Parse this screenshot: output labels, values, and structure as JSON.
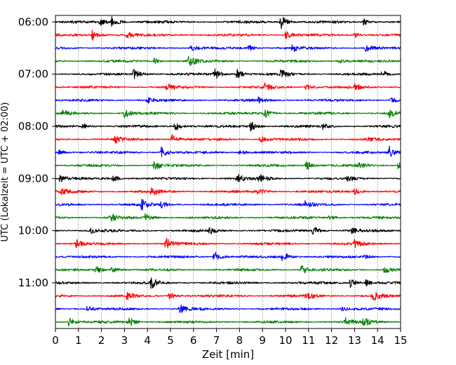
{
  "chart_data": {
    "type": "line",
    "title": "",
    "xlabel": "Zeit  [min]",
    "ylabel": "UTC (Lokalzeit = UTC + 02:00)",
    "xlim": [
      0,
      15
    ],
    "ylim": [
      -0.5,
      23.5
    ],
    "x_ticks": [
      0,
      1,
      2,
      3,
      4,
      5,
      6,
      7,
      8,
      9,
      10,
      11,
      12,
      13,
      14,
      15
    ],
    "x_tick_labels": [
      "0",
      "1",
      "2",
      "3",
      "4",
      "5",
      "6",
      "7",
      "8",
      "9",
      "10",
      "11",
      "12",
      "13",
      "14",
      "15"
    ],
    "y_ticks": [
      0,
      4,
      8,
      12,
      16,
      20
    ],
    "y_tick_labels": [
      "06:00",
      "07:00",
      "08:00",
      "09:00",
      "10:00",
      "11:00"
    ],
    "vertical_grid": true,
    "grid_style": "dotted",
    "y_direction": "down",
    "trace_amplitude_rows": 0.55,
    "series_colors": [
      "#000000",
      "#ff0000",
      "#0000ff",
      "#008000"
    ],
    "series": [
      {
        "row": 0,
        "start": "06:00",
        "color": "#000000",
        "bursts": [
          {
            "t": 1.9,
            "a": 0.6
          },
          {
            "t": 2.45,
            "a": 0.9
          },
          {
            "t": 9.8,
            "a": 1.0
          },
          {
            "t": 13.4,
            "a": 0.45
          }
        ]
      },
      {
        "row": 1,
        "start": "06:15",
        "color": "#ff0000",
        "bursts": [
          {
            "t": 1.6,
            "a": 0.8
          },
          {
            "t": 3.1,
            "a": 0.45
          },
          {
            "t": 10.0,
            "a": 0.55
          },
          {
            "t": 13.0,
            "a": 0.45
          }
        ]
      },
      {
        "row": 2,
        "start": "06:30",
        "color": "#0000ff",
        "bursts": [
          {
            "t": 5.9,
            "a": 0.45
          },
          {
            "t": 8.4,
            "a": 0.45
          },
          {
            "t": 10.3,
            "a": 0.5
          },
          {
            "t": 13.5,
            "a": 0.45
          }
        ]
      },
      {
        "row": 3,
        "start": "06:45",
        "color": "#008000",
        "bursts": [
          {
            "t": 4.3,
            "a": 0.4
          },
          {
            "t": 5.8,
            "a": 0.9
          },
          {
            "t": 12.3,
            "a": 0.4
          }
        ]
      },
      {
        "row": 4,
        "start": "07:00",
        "color": "#000000",
        "bursts": [
          {
            "t": 3.4,
            "a": 0.8
          },
          {
            "t": 6.9,
            "a": 0.9
          },
          {
            "t": 7.9,
            "a": 0.7
          },
          {
            "t": 9.8,
            "a": 0.6
          },
          {
            "t": 14.2,
            "a": 0.5
          }
        ]
      },
      {
        "row": 5,
        "start": "07:15",
        "color": "#ff0000",
        "bursts": [
          {
            "t": 4.85,
            "a": 0.5
          },
          {
            "t": 9.1,
            "a": 0.45
          },
          {
            "t": 10.9,
            "a": 0.5
          },
          {
            "t": 13.0,
            "a": 0.45
          }
        ]
      },
      {
        "row": 6,
        "start": "07:30",
        "color": "#0000ff",
        "bursts": [
          {
            "t": 4.0,
            "a": 0.4
          },
          {
            "t": 8.8,
            "a": 0.45
          },
          {
            "t": 14.6,
            "a": 0.35
          }
        ]
      },
      {
        "row": 7,
        "start": "07:45",
        "color": "#008000",
        "bursts": [
          {
            "t": 0.3,
            "a": 0.4
          },
          {
            "t": 3.0,
            "a": 0.7
          },
          {
            "t": 9.1,
            "a": 0.7
          },
          {
            "t": 14.5,
            "a": 0.75
          }
        ]
      },
      {
        "row": 8,
        "start": "08:00",
        "color": "#000000",
        "bursts": [
          {
            "t": 1.2,
            "a": 0.45
          },
          {
            "t": 5.2,
            "a": 0.75
          },
          {
            "t": 8.45,
            "a": 0.8
          },
          {
            "t": 11.6,
            "a": 0.35
          }
        ]
      },
      {
        "row": 9,
        "start": "08:15",
        "color": "#ff0000",
        "bursts": [
          {
            "t": 2.6,
            "a": 0.45
          },
          {
            "t": 5.05,
            "a": 0.8
          },
          {
            "t": 8.9,
            "a": 0.55
          },
          {
            "t": 13.5,
            "a": 0.35
          }
        ]
      },
      {
        "row": 10,
        "start": "08:30",
        "color": "#0000ff",
        "bursts": [
          {
            "t": 0.15,
            "a": 0.4
          },
          {
            "t": 4.6,
            "a": 0.75
          },
          {
            "t": 8.0,
            "a": 0.45
          },
          {
            "t": 14.5,
            "a": 0.85
          }
        ]
      },
      {
        "row": 11,
        "start": "08:45",
        "color": "#008000",
        "bursts": [
          {
            "t": 4.3,
            "a": 0.8
          },
          {
            "t": 10.9,
            "a": 0.65
          },
          {
            "t": 13.2,
            "a": 0.45
          },
          {
            "t": 14.9,
            "a": 0.55
          }
        ]
      },
      {
        "row": 12,
        "start": "09:00",
        "color": "#000000",
        "bursts": [
          {
            "t": 0.2,
            "a": 0.5
          },
          {
            "t": 2.5,
            "a": 0.45
          },
          {
            "t": 7.9,
            "a": 0.65
          },
          {
            "t": 8.85,
            "a": 0.7
          },
          {
            "t": 12.7,
            "a": 0.35
          }
        ]
      },
      {
        "row": 13,
        "start": "09:15",
        "color": "#ff0000",
        "bursts": [
          {
            "t": 0.25,
            "a": 0.55
          },
          {
            "t": 4.15,
            "a": 0.8
          },
          {
            "t": 8.8,
            "a": 0.45
          },
          {
            "t": 13.0,
            "a": 0.45
          }
        ]
      },
      {
        "row": 14,
        "start": "09:30",
        "color": "#0000ff",
        "bursts": [
          {
            "t": 3.75,
            "a": 0.7
          },
          {
            "t": 4.6,
            "a": 0.4
          },
          {
            "t": 10.85,
            "a": 0.45
          }
        ]
      },
      {
        "row": 15,
        "start": "09:45",
        "color": "#008000",
        "bursts": [
          {
            "t": 2.4,
            "a": 0.6
          },
          {
            "t": 3.9,
            "a": 0.5
          },
          {
            "t": 11.9,
            "a": 0.4
          }
        ]
      },
      {
        "row": 16,
        "start": "10:00",
        "color": "#000000",
        "bursts": [
          {
            "t": 1.55,
            "a": 0.4
          },
          {
            "t": 6.7,
            "a": 0.4
          },
          {
            "t": 11.2,
            "a": 0.6
          },
          {
            "t": 12.9,
            "a": 0.35
          }
        ]
      },
      {
        "row": 17,
        "start": "10:15",
        "color": "#ff0000",
        "bursts": [
          {
            "t": 0.9,
            "a": 0.55
          },
          {
            "t": 4.8,
            "a": 0.85
          },
          {
            "t": 13.0,
            "a": 0.45
          }
        ]
      },
      {
        "row": 18,
        "start": "10:30",
        "color": "#0000ff",
        "bursts": [
          {
            "t": 6.9,
            "a": 0.8
          },
          {
            "t": 9.85,
            "a": 0.9
          },
          {
            "t": 13.4,
            "a": 0.35
          }
        ]
      },
      {
        "row": 19,
        "start": "10:45",
        "color": "#008000",
        "bursts": [
          {
            "t": 1.75,
            "a": 0.5
          },
          {
            "t": 2.45,
            "a": 0.45
          },
          {
            "t": 10.7,
            "a": 0.65
          },
          {
            "t": 14.3,
            "a": 0.6
          }
        ]
      },
      {
        "row": 20,
        "start": "11:00",
        "color": "#000000",
        "bursts": [
          {
            "t": 4.15,
            "a": 0.8
          },
          {
            "t": 12.8,
            "a": 0.7
          },
          {
            "t": 13.5,
            "a": 0.4
          }
        ]
      },
      {
        "row": 21,
        "start": "11:15",
        "color": "#ff0000",
        "bursts": [
          {
            "t": 3.1,
            "a": 0.45
          },
          {
            "t": 4.95,
            "a": 0.55
          },
          {
            "t": 10.9,
            "a": 0.7
          },
          {
            "t": 13.8,
            "a": 0.75
          }
        ]
      },
      {
        "row": 22,
        "start": "11:30",
        "color": "#0000ff",
        "bursts": [
          {
            "t": 1.35,
            "a": 0.45
          },
          {
            "t": 5.4,
            "a": 0.65
          },
          {
            "t": 12.4,
            "a": 0.35
          }
        ]
      },
      {
        "row": 23,
        "start": "11:45",
        "color": "#008000",
        "bursts": [
          {
            "t": 0.6,
            "a": 0.7
          },
          {
            "t": 3.2,
            "a": 0.75
          },
          {
            "t": 12.6,
            "a": 0.55
          },
          {
            "t": 13.4,
            "a": 0.65
          }
        ]
      }
    ]
  }
}
